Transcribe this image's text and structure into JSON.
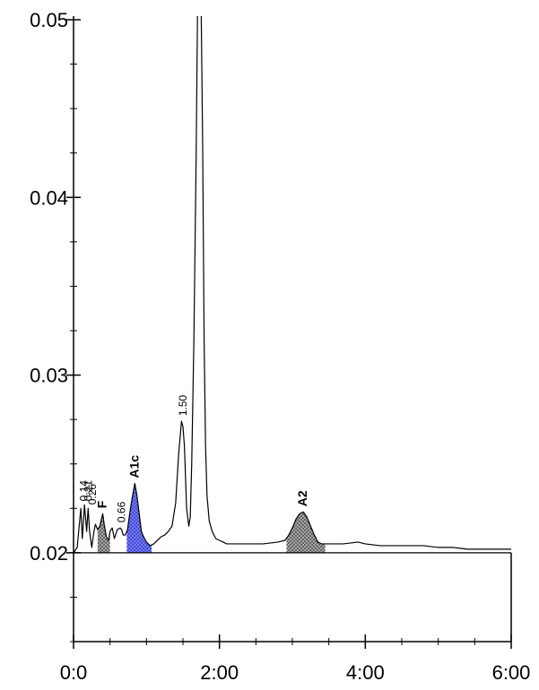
{
  "chart_data": {
    "type": "line",
    "title": "",
    "xlabel": "",
    "ylabel": "",
    "xlim": [
      0,
      6
    ],
    "ylim": [
      0.015,
      0.05
    ],
    "x_ticks": [
      {
        "value": 0,
        "label": "0:0"
      },
      {
        "value": 2,
        "label": "2:00"
      },
      {
        "value": 4,
        "label": "4:00"
      },
      {
        "value": 6,
        "label": "6:00"
      }
    ],
    "y_ticks": [
      {
        "value": 0.05,
        "label": "0.05"
      },
      {
        "value": 0.04,
        "label": "0.04"
      },
      {
        "value": 0.03,
        "label": "0.03"
      },
      {
        "value": 0.02,
        "label": "0.02"
      }
    ],
    "y_minor_step": 0.0025,
    "x_minor_step": 0.5,
    "baseline": {
      "x": [
        0,
        6
      ],
      "y": [
        0.02,
        0.02
      ]
    },
    "grid": false,
    "series": [
      {
        "x": [
          0.0,
          0.05,
          0.1,
          0.12,
          0.15,
          0.18,
          0.2,
          0.22,
          0.25,
          0.28,
          0.3,
          0.33,
          0.36,
          0.4,
          0.42,
          0.45,
          0.48,
          0.5,
          0.53,
          0.56,
          0.6,
          0.64,
          0.66,
          0.68,
          0.71,
          0.74,
          0.77,
          0.8,
          0.84,
          0.87,
          0.9,
          0.93,
          0.96,
          1.0,
          1.05,
          1.1,
          1.15,
          1.2,
          1.25,
          1.3,
          1.35,
          1.4,
          1.44,
          1.48,
          1.5,
          1.52,
          1.55,
          1.58,
          1.6,
          1.62,
          1.65,
          1.68,
          1.7,
          1.72,
          1.73,
          1.75,
          1.77,
          1.79,
          1.81,
          1.83,
          1.86,
          1.9,
          1.95,
          2.0,
          2.05,
          2.1,
          2.2,
          2.4,
          2.6,
          2.8,
          2.9,
          2.95,
          3.0,
          3.05,
          3.1,
          3.15,
          3.2,
          3.25,
          3.3,
          3.35,
          3.4,
          3.5,
          3.7,
          3.9,
          4.0,
          4.2,
          4.5,
          4.8,
          5.0,
          5.2,
          5.4,
          5.6,
          5.8,
          6.0
        ],
        "y": [
          0.02,
          0.0203,
          0.0225,
          0.0208,
          0.0227,
          0.0212,
          0.0225,
          0.0212,
          0.0203,
          0.0212,
          0.0216,
          0.0213,
          0.0215,
          0.0222,
          0.0216,
          0.0209,
          0.0207,
          0.0212,
          0.0214,
          0.0208,
          0.0213,
          0.0214,
          0.0213,
          0.021,
          0.021,
          0.0213,
          0.0222,
          0.023,
          0.0239,
          0.0232,
          0.0222,
          0.0212,
          0.0209,
          0.0206,
          0.0204,
          0.0205,
          0.0207,
          0.0209,
          0.021,
          0.0212,
          0.0215,
          0.0228,
          0.0255,
          0.0274,
          0.0271,
          0.026,
          0.0225,
          0.0215,
          0.022,
          0.025,
          0.032,
          0.042,
          0.0505,
          0.0505,
          0.0505,
          0.0505,
          0.043,
          0.032,
          0.026,
          0.0232,
          0.0218,
          0.0212,
          0.0208,
          0.0207,
          0.0206,
          0.0205,
          0.0205,
          0.0205,
          0.0205,
          0.0206,
          0.0207,
          0.021,
          0.0214,
          0.0219,
          0.0222,
          0.0223,
          0.022,
          0.0215,
          0.021,
          0.0206,
          0.0205,
          0.0205,
          0.0205,
          0.0206,
          0.0205,
          0.0204,
          0.0204,
          0.0204,
          0.0203,
          0.0203,
          0.0202,
          0.0202,
          0.0202,
          0.0202
        ]
      }
    ],
    "peaks": [
      {
        "label": "0.14",
        "x": 0.14,
        "y": 0.0226,
        "style": "small",
        "fill": "none"
      },
      {
        "label": "0.21",
        "x": 0.2,
        "y": 0.0226,
        "style": "small",
        "fill": "none"
      },
      {
        "label": "0.26",
        "x": 0.26,
        "y": 0.0224,
        "style": "small",
        "fill": "none"
      },
      {
        "label": "F",
        "x": 0.4,
        "y": 0.0222,
        "style": "bold",
        "fill": "hatch-gray",
        "range": [
          0.33,
          0.5
        ]
      },
      {
        "label": "0.66",
        "x": 0.66,
        "y": 0.0214,
        "style": "small",
        "fill": "none"
      },
      {
        "label": "A1c",
        "x": 0.84,
        "y": 0.0239,
        "style": "bold",
        "fill": "hatch-blue",
        "range": [
          0.73,
          1.07
        ]
      },
      {
        "label": "1.50",
        "x": 1.5,
        "y": 0.0274,
        "style": "small",
        "fill": "none"
      },
      {
        "label": "A2",
        "x": 3.15,
        "y": 0.0223,
        "style": "bold",
        "fill": "hatch-gray",
        "range": [
          2.92,
          3.45
        ]
      }
    ],
    "colors": {
      "line": "#000000",
      "a1c_fill": "#6b73f0",
      "hatch_gray": "#7a7a7a"
    }
  }
}
